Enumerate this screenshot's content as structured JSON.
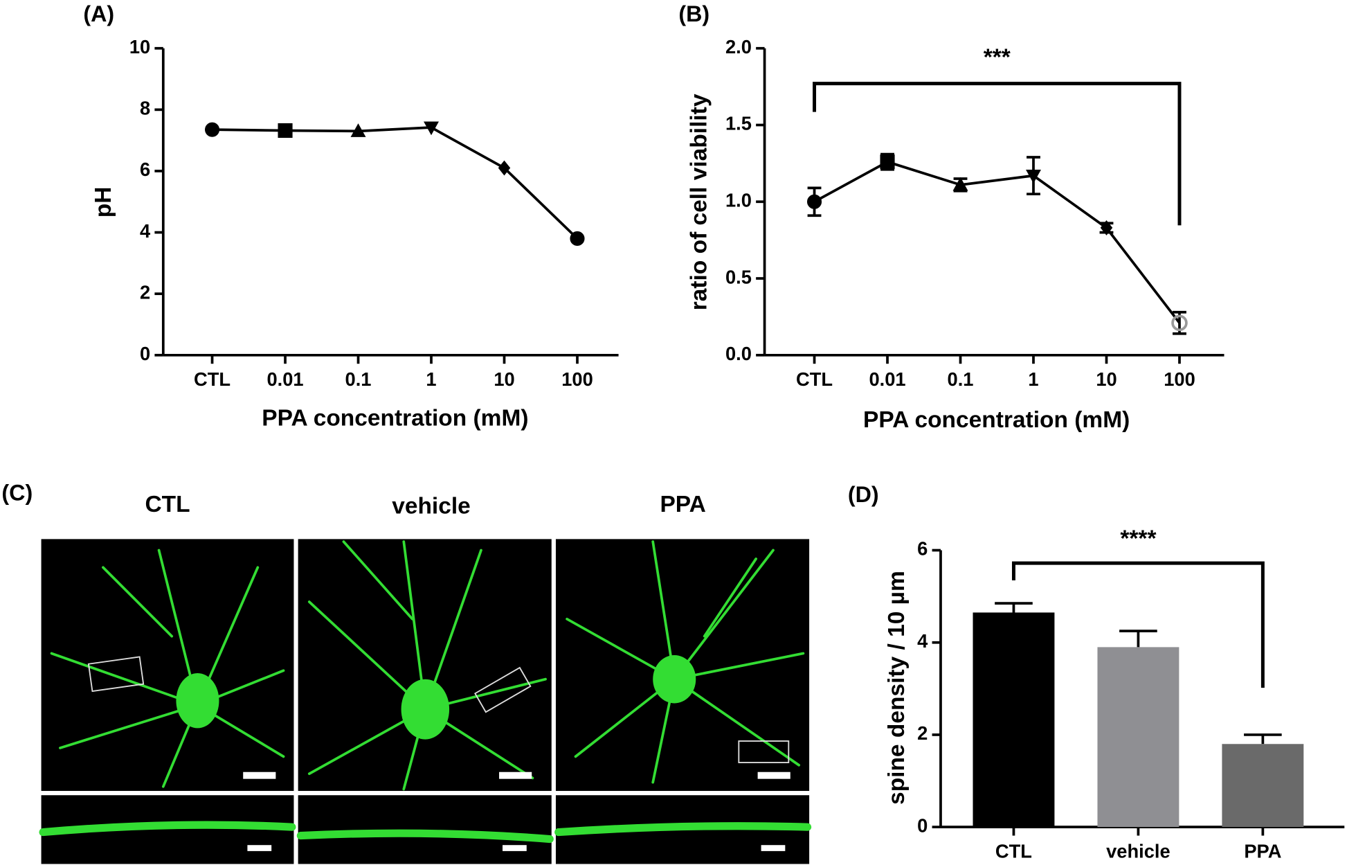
{
  "panels": [
    "(A)",
    "(B)",
    "(C)",
    "(D)"
  ],
  "chart_data": [
    {
      "type": "line",
      "ylabel": "pH",
      "xlabel": "PPA concentration (mM)",
      "categories": [
        "CTL",
        "0.01",
        "0.1",
        "1",
        "10",
        "100"
      ],
      "values": [
        7.35,
        7.32,
        7.3,
        7.42,
        6.1,
        3.8
      ],
      "markers": [
        "circle",
        "square",
        "triangle",
        "triangle-down",
        "diamond",
        "circle"
      ],
      "color": "#000000",
      "ylim": [
        0,
        10
      ],
      "yticks": [
        0,
        2,
        4,
        6,
        8,
        10
      ]
    },
    {
      "type": "line",
      "ylabel": "ratio of cell viability",
      "xlabel": "PPA concentration (mM)",
      "categories": [
        "CTL",
        "0.01",
        "0.1",
        "1",
        "10",
        "100"
      ],
      "values": [
        1.0,
        1.26,
        1.11,
        1.17,
        0.83,
        0.21
      ],
      "errors": [
        0.09,
        0.05,
        0.04,
        0.12,
        0.03,
        0.07
      ],
      "markers": [
        "circle",
        "square",
        "triangle",
        "triangle-down",
        "diamond",
        "open-circle"
      ],
      "color": "#000000",
      "annotation": "***",
      "ylim": [
        0,
        2
      ],
      "yticks": [
        {
          "value": 0,
          "label": "0.0"
        },
        {
          "value": 0.5,
          "label": "0.5"
        },
        {
          "value": 1,
          "label": "1.0"
        },
        {
          "value": 1.5,
          "label": "1.5"
        },
        {
          "value": 2,
          "label": "2.0"
        }
      ]
    },
    {
      "type": "bar",
      "ylabel": "spine density / 10 µm",
      "categories": [
        "CTL",
        "vehicle",
        "PPA"
      ],
      "values": [
        4.65,
        3.9,
        1.8
      ],
      "errors": [
        0.2,
        0.35,
        0.2
      ],
      "colors": [
        "#000000",
        "#8f8f93",
        "#6a6a6a"
      ],
      "annotation": "****",
      "ylim": [
        0,
        6
      ],
      "yticks": [
        0,
        2,
        4,
        6
      ]
    }
  ],
  "image_panel": {
    "titles": [
      "CTL",
      "vehicle",
      "PPA"
    ]
  }
}
